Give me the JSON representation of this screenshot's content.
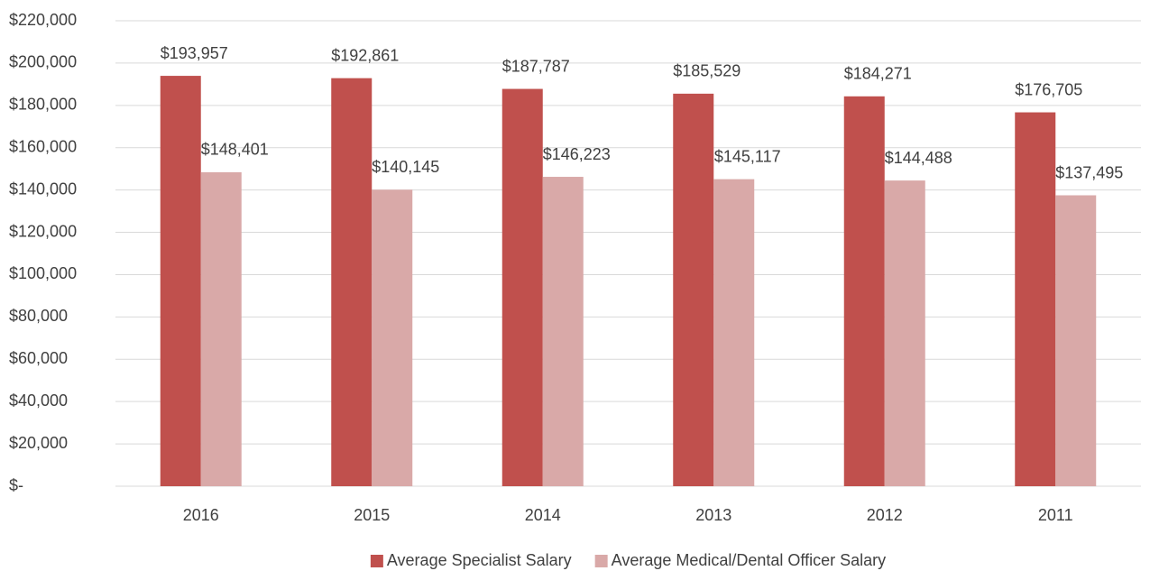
{
  "chart_data": {
    "type": "bar",
    "categories": [
      "2016",
      "2015",
      "2014",
      "2013",
      "2012",
      "2011"
    ],
    "series": [
      {
        "name": "Average Specialist Salary",
        "color": "#c0504d",
        "values": [
          193957,
          192861,
          187787,
          185529,
          184271,
          176705
        ],
        "value_labels": [
          "$193,957",
          "$192,861",
          "$187,787",
          "$185,529",
          "$184,271",
          "$176,705"
        ]
      },
      {
        "name": "Average Medical/Dental Officer Salary",
        "color": "#d9a9a8",
        "values": [
          148401,
          140145,
          146223,
          145117,
          144488,
          137495
        ],
        "value_labels": [
          "$148,401",
          "$140,145",
          "$146,223",
          "$145,117",
          "$144,488",
          "$137,495"
        ]
      }
    ],
    "ylim": [
      0,
      220000
    ],
    "yticks": [
      {
        "value": 0,
        "label": "$-"
      },
      {
        "value": 20000,
        "label": "$20,000"
      },
      {
        "value": 40000,
        "label": "$40,000"
      },
      {
        "value": 60000,
        "label": "$60,000"
      },
      {
        "value": 80000,
        "label": "$80,000"
      },
      {
        "value": 100000,
        "label": "$100,000"
      },
      {
        "value": 120000,
        "label": "$120,000"
      },
      {
        "value": 140000,
        "label": "$140,000"
      },
      {
        "value": 160000,
        "label": "$160,000"
      },
      {
        "value": 180000,
        "label": "$180,000"
      },
      {
        "value": 200000,
        "label": "$200,000"
      },
      {
        "value": 220000,
        "label": "$220,000"
      }
    ],
    "grid": true,
    "legend": "bottom"
  }
}
